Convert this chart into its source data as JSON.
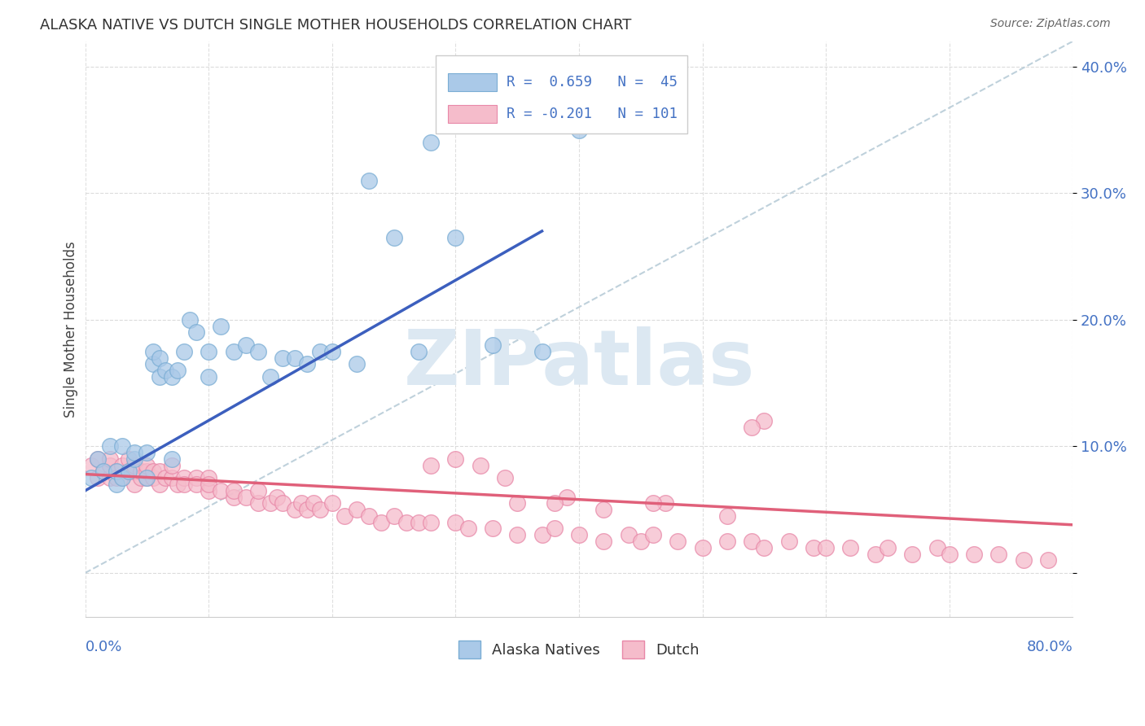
{
  "title": "ALASKA NATIVE VS DUTCH SINGLE MOTHER HOUSEHOLDS CORRELATION CHART",
  "source": "Source: ZipAtlas.com",
  "ylabel": "Single Mother Households",
  "x_min": 0.0,
  "x_max": 0.8,
  "y_min": -0.035,
  "y_max": 0.42,
  "alaska_color": "#aac9e8",
  "alaska_edge_color": "#7aadd4",
  "dutch_color": "#f5bccb",
  "dutch_edge_color": "#e888a8",
  "blue_line_color": "#3c5fbe",
  "pink_line_color": "#e0607a",
  "diag_line_color": "#b8ccd8",
  "watermark_color": "#dce8f2",
  "legend_text_color": "#4472c4",
  "background_color": "#ffffff",
  "grid_color": "#d8d8d8",
  "alaska_x": [
    0.005,
    0.01,
    0.015,
    0.02,
    0.025,
    0.025,
    0.03,
    0.03,
    0.035,
    0.04,
    0.04,
    0.05,
    0.05,
    0.055,
    0.055,
    0.06,
    0.06,
    0.065,
    0.07,
    0.07,
    0.075,
    0.08,
    0.085,
    0.09,
    0.1,
    0.1,
    0.11,
    0.12,
    0.13,
    0.14,
    0.15,
    0.16,
    0.17,
    0.18,
    0.19,
    0.2,
    0.22,
    0.23,
    0.25,
    0.27,
    0.28,
    0.3,
    0.33,
    0.37,
    0.4
  ],
  "alaska_y": [
    0.075,
    0.09,
    0.08,
    0.1,
    0.07,
    0.08,
    0.075,
    0.1,
    0.08,
    0.09,
    0.095,
    0.075,
    0.095,
    0.165,
    0.175,
    0.155,
    0.17,
    0.16,
    0.09,
    0.155,
    0.16,
    0.175,
    0.2,
    0.19,
    0.155,
    0.175,
    0.195,
    0.175,
    0.18,
    0.175,
    0.155,
    0.17,
    0.17,
    0.165,
    0.175,
    0.175,
    0.165,
    0.31,
    0.265,
    0.175,
    0.34,
    0.265,
    0.18,
    0.175,
    0.35
  ],
  "dutch_x": [
    0.005,
    0.01,
    0.01,
    0.015,
    0.02,
    0.02,
    0.02,
    0.025,
    0.025,
    0.03,
    0.03,
    0.035,
    0.035,
    0.04,
    0.04,
    0.04,
    0.045,
    0.045,
    0.05,
    0.05,
    0.05,
    0.055,
    0.055,
    0.06,
    0.06,
    0.065,
    0.07,
    0.07,
    0.075,
    0.08,
    0.08,
    0.09,
    0.09,
    0.1,
    0.1,
    0.1,
    0.11,
    0.12,
    0.12,
    0.13,
    0.14,
    0.14,
    0.15,
    0.155,
    0.16,
    0.17,
    0.175,
    0.18,
    0.185,
    0.19,
    0.2,
    0.21,
    0.22,
    0.23,
    0.24,
    0.25,
    0.26,
    0.27,
    0.28,
    0.3,
    0.31,
    0.33,
    0.35,
    0.37,
    0.38,
    0.4,
    0.42,
    0.44,
    0.45,
    0.46,
    0.48,
    0.5,
    0.52,
    0.54,
    0.55,
    0.57,
    0.59,
    0.6,
    0.62,
    0.64,
    0.65,
    0.67,
    0.69,
    0.7,
    0.72,
    0.74,
    0.76,
    0.78,
    0.34,
    0.39,
    0.47,
    0.55,
    0.28,
    0.3,
    0.32,
    0.35,
    0.38,
    0.42,
    0.46,
    0.52,
    0.54
  ],
  "dutch_y": [
    0.085,
    0.075,
    0.09,
    0.08,
    0.075,
    0.085,
    0.09,
    0.08,
    0.075,
    0.075,
    0.085,
    0.08,
    0.09,
    0.07,
    0.08,
    0.085,
    0.075,
    0.08,
    0.075,
    0.08,
    0.085,
    0.075,
    0.08,
    0.07,
    0.08,
    0.075,
    0.075,
    0.085,
    0.07,
    0.075,
    0.07,
    0.075,
    0.07,
    0.065,
    0.075,
    0.07,
    0.065,
    0.06,
    0.065,
    0.06,
    0.055,
    0.065,
    0.055,
    0.06,
    0.055,
    0.05,
    0.055,
    0.05,
    0.055,
    0.05,
    0.055,
    0.045,
    0.05,
    0.045,
    0.04,
    0.045,
    0.04,
    0.04,
    0.04,
    0.04,
    0.035,
    0.035,
    0.03,
    0.03,
    0.035,
    0.03,
    0.025,
    0.03,
    0.025,
    0.03,
    0.025,
    0.02,
    0.025,
    0.025,
    0.02,
    0.025,
    0.02,
    0.02,
    0.02,
    0.015,
    0.02,
    0.015,
    0.02,
    0.015,
    0.015,
    0.015,
    0.01,
    0.01,
    0.075,
    0.06,
    0.055,
    0.12,
    0.085,
    0.09,
    0.085,
    0.055,
    0.055,
    0.05,
    0.055,
    0.045,
    0.115
  ],
  "blue_line_x": [
    0.0,
    0.37
  ],
  "blue_line_y": [
    0.065,
    0.27
  ],
  "pink_line_x": [
    0.0,
    0.8
  ],
  "pink_line_y": [
    0.078,
    0.038
  ],
  "diag_line_x": [
    0.0,
    0.8
  ],
  "diag_line_y": [
    0.0,
    0.42
  ]
}
